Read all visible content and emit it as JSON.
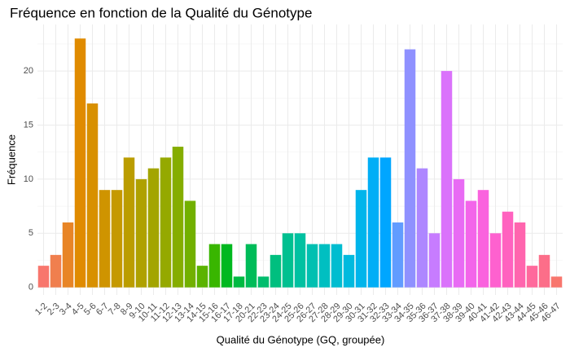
{
  "chart_data": {
    "type": "bar",
    "title": "Fréquence en fonction de la Qualité du Génotype",
    "x_label": "Qualité du Génotype (GQ, groupée)",
    "y_label": "Fréquence",
    "categories": [
      "1-2",
      "2-3",
      "3-4",
      "4-5",
      "5-6",
      "6-7",
      "7-8",
      "8-9",
      "9-10",
      "10-11",
      "11-12",
      "12-13",
      "13-14",
      "14-15",
      "15-16",
      "16-17",
      "17-18",
      "20-21",
      "22-23",
      "23-24",
      "24-25",
      "25-26",
      "26-27",
      "27-28",
      "28-29",
      "29-30",
      "30-31",
      "31-32",
      "32-33",
      "33-34",
      "34-35",
      "35-36",
      "36-37",
      "37-38",
      "38-39",
      "39-40",
      "40-41",
      "41-42",
      "42-43",
      "43-44",
      "44-45",
      "45-46",
      "46-47"
    ],
    "values": [
      2,
      3,
      6,
      23,
      17,
      9,
      9,
      12,
      10,
      11,
      12,
      13,
      8,
      2,
      4,
      4,
      1,
      4,
      1,
      3,
      5,
      5,
      4,
      4,
      4,
      3,
      9,
      12,
      12,
      6,
      22,
      11,
      5,
      20,
      10,
      8,
      9,
      5,
      7,
      6,
      2,
      3,
      1
    ],
    "colors": [
      "#F8766D",
      "#F07F4E",
      "#E88526",
      "#E08B00",
      "#D89000",
      "#CF9400",
      "#C59900",
      "#BB9D00",
      "#AFA100",
      "#A3A500",
      "#95A900",
      "#85AD00",
      "#72B000",
      "#5BB300",
      "#39B600",
      "#00B81F",
      "#00BA42",
      "#00BC59",
      "#00BD6D",
      "#00BF7F",
      "#00C090",
      "#00C1A1",
      "#00C0B1",
      "#00BFC1",
      "#00BDD0",
      "#00BADE",
      "#00B5EB",
      "#00AEF6",
      "#00A6FF",
      "#619CFF",
      "#8F91FF",
      "#AE87FF",
      "#C77CFF",
      "#DA72FB",
      "#E86BF4",
      "#F365EA",
      "#FA62DE",
      "#FE61CF",
      "#FF62BF",
      "#FF65AE",
      "#FF699C",
      "#FC6E89",
      "#F8766D"
    ],
    "ylim": [
      -0.7,
      24.3
    ],
    "yticks": [
      0,
      5,
      10,
      15,
      20
    ],
    "y_minor_ticks": [
      2.5,
      7.5,
      12.5,
      17.5,
      22.5
    ],
    "grid": true
  }
}
